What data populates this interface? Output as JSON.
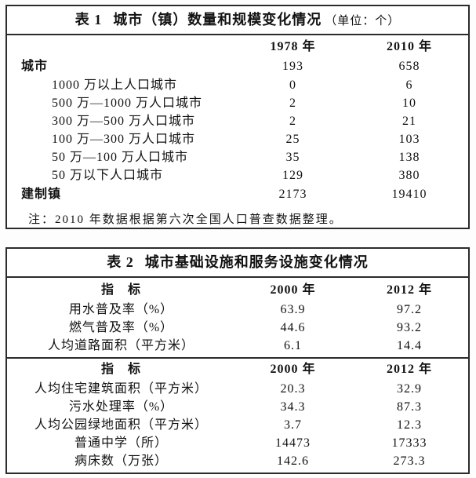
{
  "colors": {
    "page_background": "#fdfdfd",
    "table_background": "#ffffff",
    "border": "#2b2b2b",
    "text": "#121212"
  },
  "table1": {
    "title_prefix": "表 1",
    "title_main": "城市（镇）数量和规模变化情况",
    "title_unit": "（单位：个）",
    "col_headers": [
      "1978 年",
      "2010 年"
    ],
    "rows": [
      {
        "label": "城市",
        "y1978": "193",
        "y2010": "658"
      },
      {
        "label": "1000 万以上人口城市",
        "y1978": "0",
        "y2010": "6"
      },
      {
        "label": "500 万—1000 万人口城市",
        "y1978": "2",
        "y2010": "10"
      },
      {
        "label": "300 万—500 万人口城市",
        "y1978": "2",
        "y2010": "21"
      },
      {
        "label": "100 万—300 万人口城市",
        "y1978": "25",
        "y2010": "103"
      },
      {
        "label": "50 万—100 万人口城市",
        "y1978": "35",
        "y2010": "138"
      },
      {
        "label": "50 万以下人口城市",
        "y1978": "129",
        "y2010": "380"
      },
      {
        "label": "建制镇",
        "y1978": "2173",
        "y2010": "19410"
      }
    ],
    "note": "注：2010 年数据根据第六次全国人口普查数据整理。"
  },
  "table2": {
    "title_prefix": "表 2",
    "title_main": "城市基础设施和服务设施变化情况",
    "sections": [
      {
        "header": [
          "指　标",
          "2000 年",
          "2012 年"
        ],
        "rows": [
          [
            "用水普及率（%）",
            "63.9",
            "97.2"
          ],
          [
            "燃气普及率（%）",
            "44.6",
            "93.2"
          ],
          [
            "人均道路面积（平方米）",
            "6.1",
            "14.4"
          ]
        ]
      },
      {
        "header": [
          "指　标",
          "2000 年",
          "2012 年"
        ],
        "rows": [
          [
            "人均住宅建筑面积（平方米）",
            "20.3",
            "32.9"
          ],
          [
            "污水处理率（%）",
            "34.3",
            "87.3"
          ],
          [
            "人均公园绿地面积（平方米）",
            "3.7",
            "12.3"
          ],
          [
            "普通中学（所）",
            "14473",
            "17333"
          ],
          [
            "病床数（万张）",
            "142.6",
            "273.3"
          ]
        ]
      }
    ]
  },
  "chart_data": [
    {
      "type": "table",
      "title": "表1 城市（镇）数量和规模变化情况（单位：个）",
      "columns": [
        "",
        "1978 年",
        "2010 年"
      ],
      "rows": [
        [
          "城市",
          193,
          658
        ],
        [
          "1000 万以上人口城市",
          0,
          6
        ],
        [
          "500 万—1000 万人口城市",
          2,
          10
        ],
        [
          "300 万—500 万人口城市",
          2,
          21
        ],
        [
          "100 万—300 万人口城市",
          25,
          103
        ],
        [
          "50 万—100 万人口城市",
          35,
          138
        ],
        [
          "50 万以下人口城市",
          129,
          380
        ],
        [
          "建制镇",
          2173,
          19410
        ]
      ],
      "note": "注：2010 年数据根据第六次全国人口普查数据整理。"
    },
    {
      "type": "table",
      "title": "表2 城市基础设施和服务设施变化情况",
      "columns": [
        "指标",
        "2000 年",
        "2012 年"
      ],
      "rows": [
        [
          "用水普及率（%）",
          63.9,
          97.2
        ],
        [
          "燃气普及率（%）",
          44.6,
          93.2
        ],
        [
          "人均道路面积（平方米）",
          6.1,
          14.4
        ],
        [
          "人均住宅建筑面积（平方米）",
          20.3,
          32.9
        ],
        [
          "污水处理率（%）",
          34.3,
          87.3
        ],
        [
          "人均公园绿地面积（平方米）",
          3.7,
          12.3
        ],
        [
          "普通中学（所）",
          14473,
          17333
        ],
        [
          "病床数（万张）",
          142.6,
          273.3
        ]
      ]
    }
  ]
}
